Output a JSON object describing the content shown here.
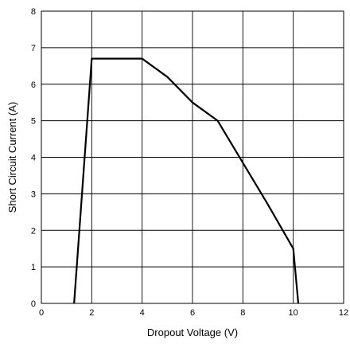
{
  "chart_data": {
    "type": "line",
    "title": "",
    "xlabel": "Dropout Voltage (V)",
    "ylabel": "Short Circuit Current (A)",
    "xlim": [
      0,
      12
    ],
    "ylim": [
      0,
      8
    ],
    "x_ticks": [
      "0",
      "2",
      "4",
      "6",
      "8",
      "10",
      "12"
    ],
    "y_ticks": [
      "0",
      "1",
      "2",
      "3",
      "4",
      "5",
      "6",
      "7",
      "8"
    ],
    "grid": true,
    "series": [
      {
        "color": "#000000",
        "points": [
          {
            "x": 1.3,
            "y": 0
          },
          {
            "x": 2.0,
            "y": 6.7
          },
          {
            "x": 4.0,
            "y": 6.7
          },
          {
            "x": 5.0,
            "y": 6.2
          },
          {
            "x": 6.0,
            "y": 5.5
          },
          {
            "x": 7.0,
            "y": 5.0
          },
          {
            "x": 8.0,
            "y": 3.85
          },
          {
            "x": 9.0,
            "y": 2.7
          },
          {
            "x": 10.0,
            "y": 1.5
          },
          {
            "x": 10.2,
            "y": 0
          }
        ]
      }
    ]
  }
}
